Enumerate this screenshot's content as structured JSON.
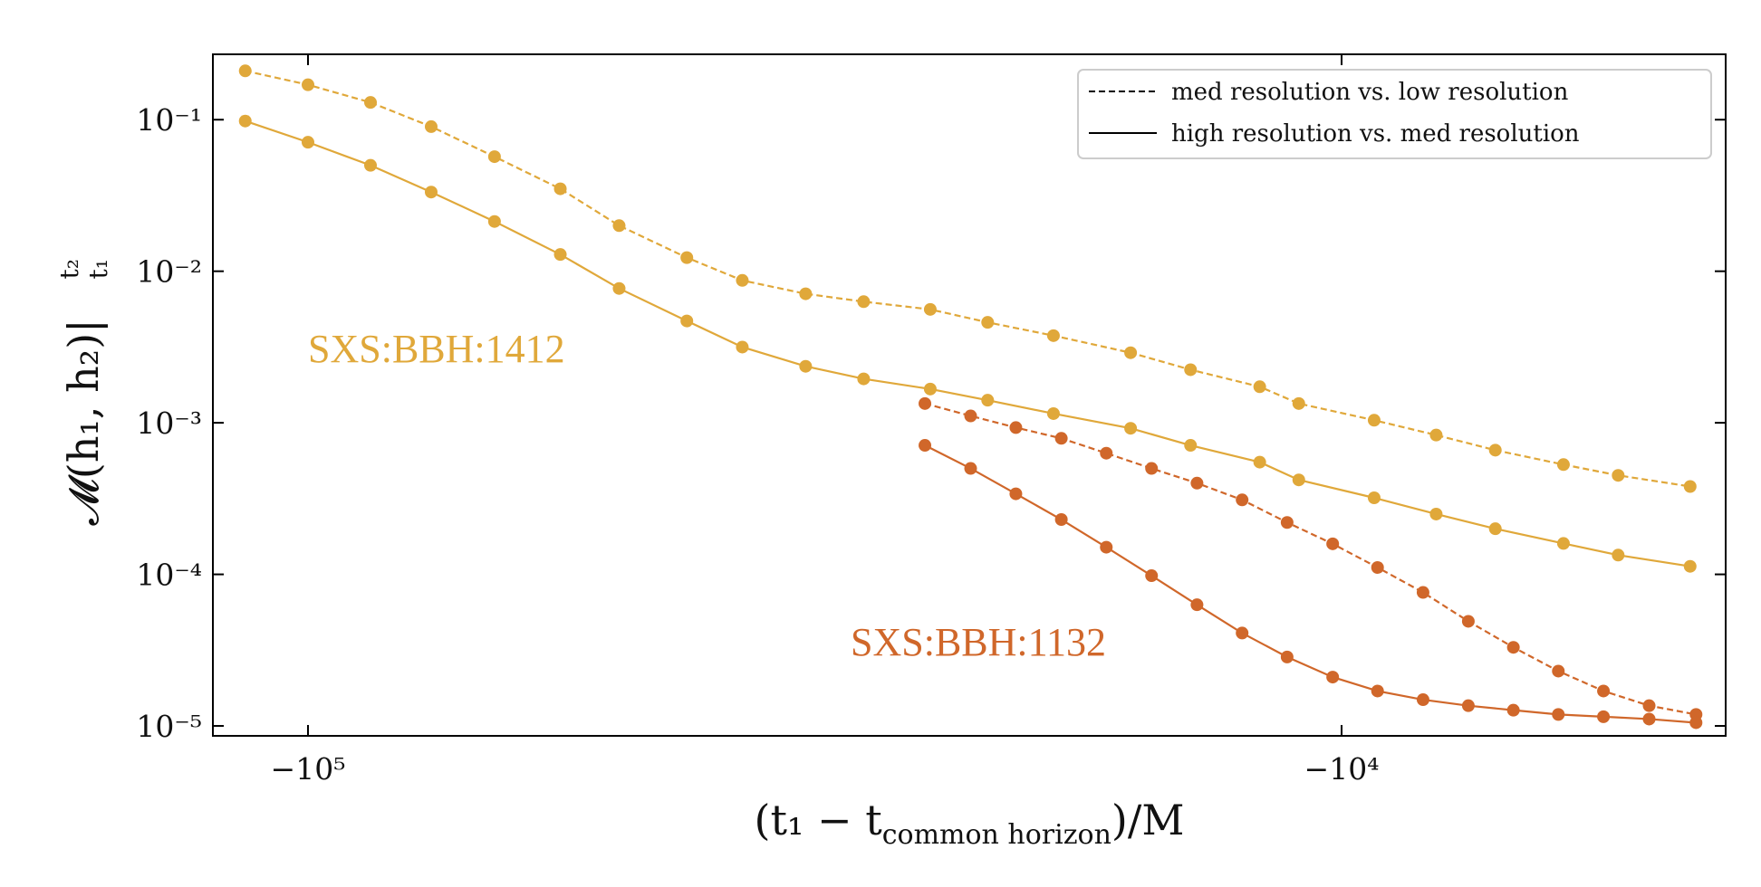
{
  "chart_data": {
    "type": "line",
    "xlabel": {
      "main": "(t₁ − t",
      "sub": "common horizon",
      "tail": ")/M"
    },
    "ylabel": {
      "main": "𝓜(h₁, h₂)|",
      "sup": "t₂",
      "sub": "t₁"
    },
    "xlog": true,
    "ylog": true,
    "xlim": [
      -123600,
      -4250
    ],
    "ylim": [
      8.6e-06,
      0.27
    ],
    "xticks": [
      {
        "value": -100000,
        "label": "−10⁵"
      },
      {
        "value": -10000,
        "label": "−10⁴"
      }
    ],
    "yticks": [
      {
        "value": 0.1,
        "label": "10⁻¹"
      },
      {
        "value": 0.01,
        "label": "10⁻²"
      },
      {
        "value": 0.001,
        "label": "10⁻³"
      },
      {
        "value": 0.0001,
        "label": "10⁻⁴"
      },
      {
        "value": 1e-05,
        "label": "10⁻⁵"
      }
    ],
    "legend": [
      {
        "label": "med resolution vs. low resolution",
        "dashed": true
      },
      {
        "label": "high resolution vs. med resolution",
        "dashed": false
      }
    ],
    "annotations": [
      {
        "text": "SXS:BBH:1412",
        "color": "#e0a83a"
      },
      {
        "text": "SXS:BBH:1132",
        "color": "#d0672a"
      }
    ],
    "series": [
      {
        "color": "#e0a83a",
        "dashed": true,
        "x": [
          -115000,
          -100000,
          -87000,
          -76000,
          -66000,
          -57000,
          -50000,
          -43000,
          -38000,
          -33000,
          -29000,
          -25000,
          -22000,
          -19000,
          -16000,
          -14000,
          -12000,
          -11000,
          -9300,
          -8100,
          -7100,
          -6100,
          -5400,
          -4600
        ],
        "values": [
          0.21,
          0.17,
          0.13,
          0.09,
          0.057,
          0.035,
          0.02,
          0.0123,
          0.0087,
          0.0071,
          0.0063,
          0.0056,
          0.0046,
          0.00376,
          0.0029,
          0.00224,
          0.00173,
          0.00134,
          0.00104,
          0.00083,
          0.00066,
          0.00053,
          0.00045,
          0.00038
        ]
      },
      {
        "color": "#e0a83a",
        "dashed": false,
        "x": [
          -115000,
          -100000,
          -87000,
          -76000,
          -66000,
          -57000,
          -50000,
          -43000,
          -38000,
          -33000,
          -29000,
          -25000,
          -22000,
          -19000,
          -16000,
          -14000,
          -12000,
          -11000,
          -9300,
          -8100,
          -7100,
          -6100,
          -5400,
          -4600
        ],
        "values": [
          0.098,
          0.071,
          0.05,
          0.0333,
          0.0213,
          0.0129,
          0.0077,
          0.0047,
          0.00316,
          0.00236,
          0.00195,
          0.00167,
          0.00141,
          0.00115,
          0.00092,
          0.00071,
          0.00055,
          0.00042,
          0.00032,
          0.00025,
          0.0002,
          0.00016,
          0.000134,
          0.000113
        ]
      },
      {
        "color": "#d0672a",
        "dashed": true,
        "x": [
          -25300,
          -22850,
          -20660,
          -18670,
          -16890,
          -15270,
          -13800,
          -12480,
          -11290,
          -10200,
          -9230,
          -8340,
          -7540,
          -6820,
          -6170,
          -5580,
          -5040,
          -4540
        ],
        "values": [
          0.00134,
          0.00111,
          0.00093,
          0.00079,
          0.00063,
          0.0005,
          0.0004,
          0.00031,
          0.00022,
          0.000159,
          0.000111,
          7.6e-05,
          4.9e-05,
          3.3e-05,
          2.3e-05,
          1.7e-05,
          1.36e-05,
          1.19e-05
        ]
      },
      {
        "color": "#d0672a",
        "dashed": false,
        "x": [
          -25300,
          -22850,
          -20660,
          -18670,
          -16890,
          -15270,
          -13800,
          -12480,
          -11290,
          -10200,
          -9230,
          -8340,
          -7540,
          -6820,
          -6170,
          -5580,
          -5040,
          -4540
        ],
        "values": [
          0.00071,
          0.0005,
          0.00034,
          0.00023,
          0.000151,
          9.8e-05,
          6.3e-05,
          4.1e-05,
          2.85e-05,
          2.1e-05,
          1.7e-05,
          1.49e-05,
          1.36e-05,
          1.27e-05,
          1.19e-05,
          1.15e-05,
          1.11e-05,
          1.05e-05
        ]
      }
    ]
  }
}
